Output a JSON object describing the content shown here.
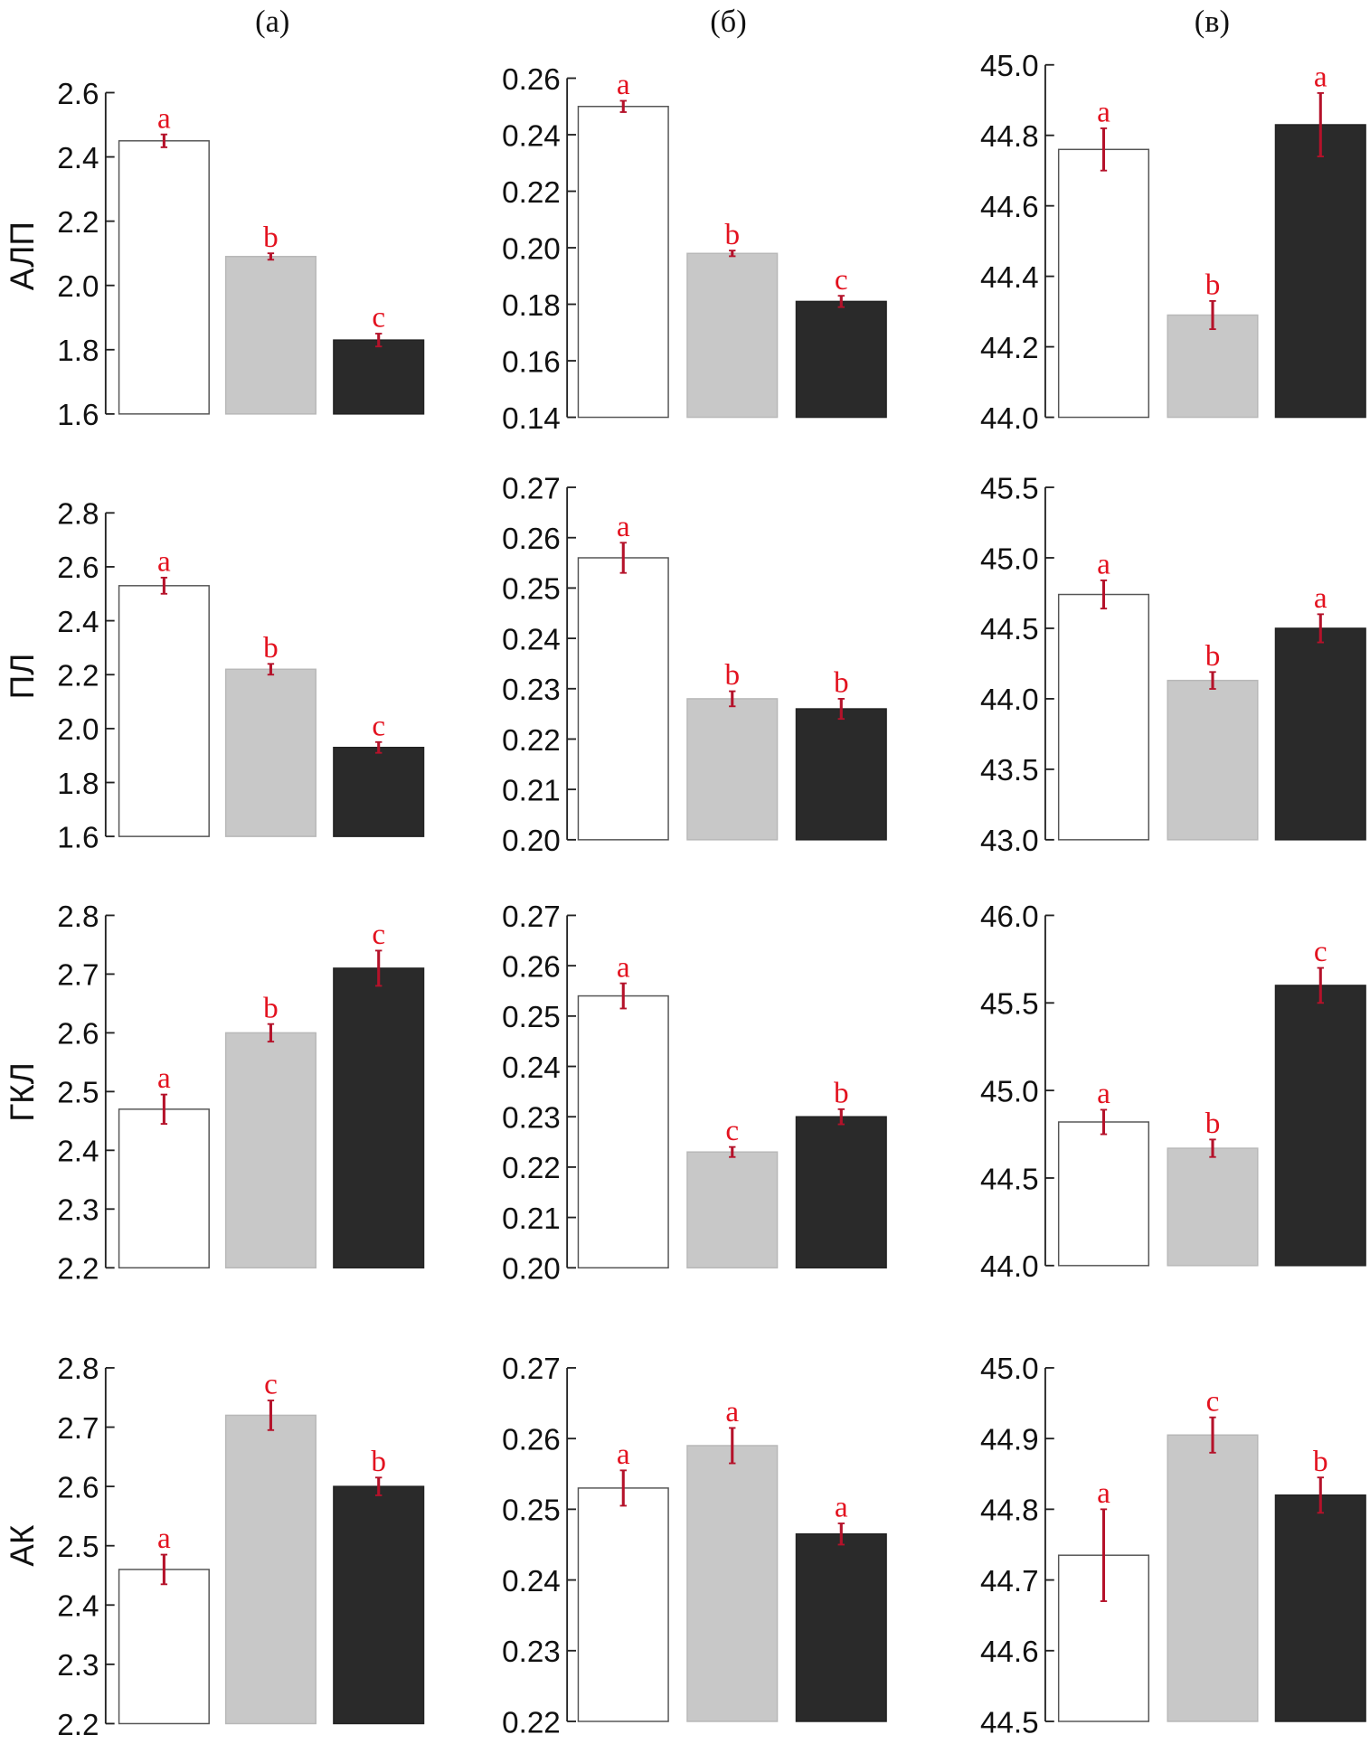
{
  "chart_data": {
    "type": "bar",
    "column_titles": [
      "(а)",
      "(б)",
      "(в)"
    ],
    "row_labels": [
      "АЛП",
      "ПЛ",
      "ГКЛ",
      "АК"
    ],
    "colors": {
      "bars": [
        "#ffffff",
        "#c8c8c8",
        "#2a2a2a"
      ],
      "bar_stroke": "#555555",
      "error": "#b5122a",
      "letters": "#e3121f"
    },
    "panels": [
      {
        "row": 0,
        "col": 0,
        "ylim": [
          1.6,
          2.6
        ],
        "ticks": [
          "1.6",
          "1.8",
          "2.0",
          "2.2",
          "2.4",
          "2.6"
        ],
        "values": [
          2.45,
          2.09,
          1.83
        ],
        "errors": [
          0.02,
          0.01,
          0.02
        ],
        "letters": [
          "a",
          "b",
          "c"
        ]
      },
      {
        "row": 0,
        "col": 1,
        "ylim": [
          0.14,
          0.26
        ],
        "ticks": [
          "0.14",
          "0.16",
          "0.18",
          "0.20",
          "0.22",
          "0.24",
          "0.26"
        ],
        "values": [
          0.25,
          0.198,
          0.181
        ],
        "errors": [
          0.002,
          0.001,
          0.002
        ],
        "letters": [
          "a",
          "b",
          "c"
        ]
      },
      {
        "row": 0,
        "col": 2,
        "ylim": [
          44.0,
          45.0
        ],
        "ticks": [
          "44.0",
          "44.2",
          "44.4",
          "44.6",
          "44.8",
          "45.0"
        ],
        "values": [
          44.76,
          44.29,
          44.83
        ],
        "errors": [
          0.06,
          0.04,
          0.09
        ],
        "letters": [
          "a",
          "b",
          "a"
        ]
      },
      {
        "row": 1,
        "col": 0,
        "ylim": [
          1.6,
          2.8
        ],
        "ticks": [
          "1.6",
          "1.8",
          "2.0",
          "2.2",
          "2.4",
          "2.6",
          "2.8"
        ],
        "values": [
          2.53,
          2.22,
          1.93
        ],
        "errors": [
          0.03,
          0.02,
          0.02
        ],
        "letters": [
          "a",
          "b",
          "c"
        ]
      },
      {
        "row": 1,
        "col": 1,
        "ylim": [
          0.2,
          0.27
        ],
        "ticks": [
          "0.20",
          "0.21",
          "0.22",
          "0.23",
          "0.24",
          "0.25",
          "0.26",
          "0.27"
        ],
        "values": [
          0.256,
          0.228,
          0.226
        ],
        "errors": [
          0.003,
          0.0015,
          0.002
        ],
        "letters": [
          "a",
          "b",
          "b"
        ]
      },
      {
        "row": 1,
        "col": 2,
        "ylim": [
          43.0,
          45.5
        ],
        "ticks": [
          "43.0",
          "43.5",
          "44.0",
          "44.5",
          "45.0",
          "45.5"
        ],
        "values": [
          44.74,
          44.13,
          44.5
        ],
        "errors": [
          0.1,
          0.06,
          0.1
        ],
        "letters": [
          "a",
          "b",
          "a"
        ]
      },
      {
        "row": 2,
        "col": 0,
        "ylim": [
          2.2,
          2.8
        ],
        "ticks": [
          "2.2",
          "2.3",
          "2.4",
          "2.5",
          "2.6",
          "2.7",
          "2.8"
        ],
        "values": [
          2.47,
          2.6,
          2.71
        ],
        "errors": [
          0.025,
          0.015,
          0.03
        ],
        "letters": [
          "a",
          "b",
          "c"
        ]
      },
      {
        "row": 2,
        "col": 1,
        "ylim": [
          0.2,
          0.27
        ],
        "ticks": [
          "0.20",
          "0.21",
          "0.22",
          "0.23",
          "0.24",
          "0.25",
          "0.26",
          "0.27"
        ],
        "values": [
          0.254,
          0.223,
          0.23
        ],
        "errors": [
          0.0025,
          0.001,
          0.0015
        ],
        "letters": [
          "a",
          "c",
          "b"
        ]
      },
      {
        "row": 2,
        "col": 2,
        "ylim": [
          44.0,
          46.0
        ],
        "ticks": [
          "44.0",
          "44.5",
          "45.0",
          "45.5",
          "46.0"
        ],
        "values": [
          44.82,
          44.67,
          45.6
        ],
        "errors": [
          0.07,
          0.05,
          0.1
        ],
        "letters": [
          "a",
          "b",
          "c"
        ]
      },
      {
        "row": 3,
        "col": 0,
        "ylim": [
          2.2,
          2.8
        ],
        "ticks": [
          "2.2",
          "2.3",
          "2.4",
          "2.5",
          "2.6",
          "2.7",
          "2.8"
        ],
        "values": [
          2.46,
          2.72,
          2.6
        ],
        "errors": [
          0.025,
          0.025,
          0.015
        ],
        "letters": [
          "a",
          "c",
          "b"
        ]
      },
      {
        "row": 3,
        "col": 1,
        "ylim": [
          0.22,
          0.27
        ],
        "ticks": [
          "0.22",
          "0.23",
          "0.24",
          "0.25",
          "0.26",
          "0.27"
        ],
        "values": [
          0.253,
          0.259,
          0.2465
        ],
        "errors": [
          0.0025,
          0.0025,
          0.0015
        ],
        "letters": [
          "a",
          "a",
          "a"
        ]
      },
      {
        "row": 3,
        "col": 2,
        "ylim": [
          44.5,
          45.0
        ],
        "ticks": [
          "44.5",
          "44.6",
          "44.7",
          "44.8",
          "44.9",
          "45.0"
        ],
        "values": [
          44.735,
          44.905,
          44.82
        ],
        "errors": [
          0.065,
          0.025,
          0.025
        ],
        "letters": [
          "a",
          "c",
          "b"
        ]
      }
    ]
  }
}
